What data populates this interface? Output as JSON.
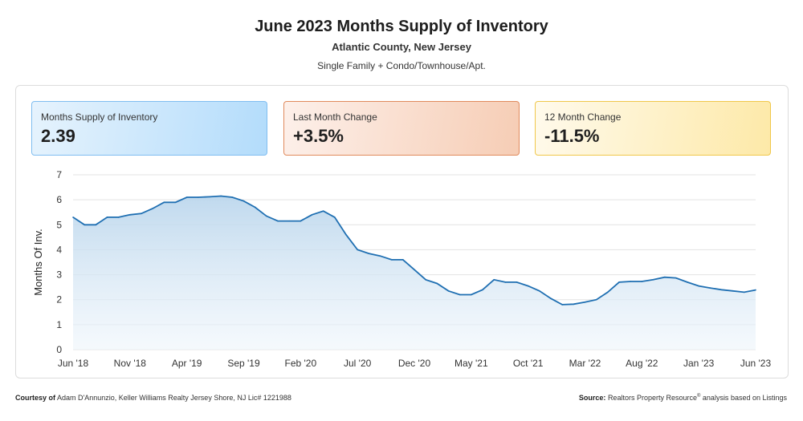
{
  "header": {
    "title": "June 2023 Months Supply of Inventory",
    "subtitle": "Atlantic County, New Jersey",
    "subtitle2": "Single Family + Condo/Townhouse/Apt."
  },
  "cards": [
    {
      "label": "Months Supply of Inventory",
      "value": "2.39"
    },
    {
      "label": "Last Month Change",
      "value": "+3.5%"
    },
    {
      "label": "12 Month Change",
      "value": "-11.5%"
    }
  ],
  "chart_data": {
    "type": "area",
    "ylabel": "Months Of Inv.",
    "ylim": [
      0,
      7
    ],
    "yticks": [
      0,
      1,
      2,
      3,
      4,
      5,
      6,
      7
    ],
    "grid": true,
    "x_tick_labels": [
      "Jun '18",
      "Nov '18",
      "Apr '19",
      "Sep '19",
      "Feb '20",
      "Jul '20",
      "Dec '20",
      "May '21",
      "Oct '21",
      "Mar '22",
      "Aug '22",
      "Jan '23",
      "Jun '23"
    ],
    "x_tick_index": [
      0,
      5,
      10,
      15,
      20,
      25,
      30,
      35,
      40,
      45,
      50,
      55,
      60
    ],
    "series": [
      {
        "color": "#1f6fb2",
        "values": [
          5.3,
          5.0,
          5.0,
          5.3,
          5.3,
          5.4,
          5.45,
          5.65,
          5.9,
          5.9,
          6.1,
          6.1,
          6.12,
          6.15,
          6.1,
          5.95,
          5.7,
          5.35,
          5.15,
          5.15,
          5.15,
          5.4,
          5.55,
          5.3,
          4.6,
          4.0,
          3.85,
          3.75,
          3.6,
          3.6,
          3.2,
          2.8,
          2.65,
          2.35,
          2.2,
          2.2,
          2.4,
          2.8,
          2.7,
          2.7,
          2.55,
          2.35,
          2.05,
          1.8,
          1.82,
          1.9,
          2.0,
          2.3,
          2.7,
          2.73,
          2.73,
          2.8,
          2.9,
          2.87,
          2.7,
          2.55,
          2.47,
          2.4,
          2.35,
          2.3,
          2.39
        ]
      }
    ]
  },
  "footer": {
    "left_label": "Courtesy of",
    "left_text": "Adam D'Annunzio, Keller Williams Realty Jersey Shore, NJ Lic# 1221988",
    "right_label": "Source:",
    "right_text_a": "Realtors Property Resource",
    "right_sup": "®",
    "right_text_b": "analysis based on Listings"
  }
}
